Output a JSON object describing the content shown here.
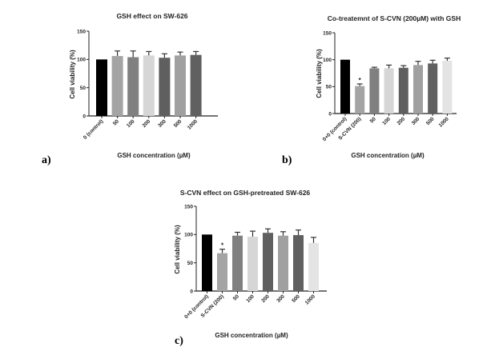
{
  "figure": {
    "panel_labels": [
      "a)",
      "b)",
      "c)"
    ]
  },
  "chart_data": [
    {
      "type": "bar",
      "panel": "a)",
      "title": "GSH effect on SW-626",
      "xlabel": "GSH concentration (µM)",
      "ylabel": "Cell viability (%)",
      "ylim": [
        0,
        150
      ],
      "yticks": [
        0,
        50,
        100,
        150
      ],
      "grid": false,
      "categories": [
        "0 (control)",
        "50",
        "100",
        "200",
        "300",
        "500",
        "1000"
      ],
      "values": [
        100,
        106,
        104,
        107,
        103,
        107,
        108
      ],
      "errors": [
        0,
        9,
        11,
        7,
        7,
        6,
        6
      ],
      "significance": [
        "",
        "",
        "",
        "",
        "",
        "",
        ""
      ],
      "colors": [
        "#000000",
        "#a4a4a4",
        "#808080",
        "#d6d6d6",
        "#5f5f5f",
        "#a0a0a0",
        "#606060"
      ]
    },
    {
      "type": "bar",
      "panel": "b)",
      "title": "Co-treatemnt of S-CVN (200µM) with GSH",
      "xlabel": "GSH concentration (µM)",
      "ylabel": "Cell viability (%)",
      "ylim": [
        0,
        150
      ],
      "yticks": [
        0,
        50,
        100,
        150
      ],
      "grid": false,
      "categories": [
        "0+0 (control)",
        "S-CVN (200)",
        "50",
        "100",
        "200",
        "300",
        "500",
        "1000"
      ],
      "values": [
        100,
        51,
        84,
        84,
        85,
        90,
        93,
        98
      ],
      "errors": [
        0,
        4,
        2,
        6,
        4,
        7,
        6,
        5
      ],
      "significance": [
        "",
        "*",
        "",
        "",
        "",
        "",
        "",
        ""
      ],
      "colors": [
        "#000000",
        "#a4a4a4",
        "#808080",
        "#d6d6d6",
        "#5f5f5f",
        "#a0a0a0",
        "#606060",
        "#e4e4e4"
      ]
    },
    {
      "type": "bar",
      "panel": "c)",
      "title": "S-CVN effect on GSH-pretreated SW-626",
      "xlabel": "GSH concentration (µM)",
      "ylabel": "Cell viability (%)",
      "ylim": [
        0,
        150
      ],
      "yticks": [
        0,
        50,
        100,
        150
      ],
      "grid": false,
      "categories": [
        "0+0 (control)",
        "S-CVN (200)",
        "50",
        "100",
        "200",
        "300",
        "500",
        "1000"
      ],
      "values": [
        100,
        67,
        98,
        96,
        103,
        98,
        99,
        85
      ],
      "errors": [
        0,
        7,
        6,
        10,
        7,
        7,
        9,
        10
      ],
      "significance": [
        "",
        "*",
        "",
        "",
        "",
        "",
        "",
        ""
      ],
      "colors": [
        "#000000",
        "#a4a4a4",
        "#808080",
        "#d6d6d6",
        "#5f5f5f",
        "#a0a0a0",
        "#606060",
        "#e4e4e4"
      ]
    }
  ]
}
